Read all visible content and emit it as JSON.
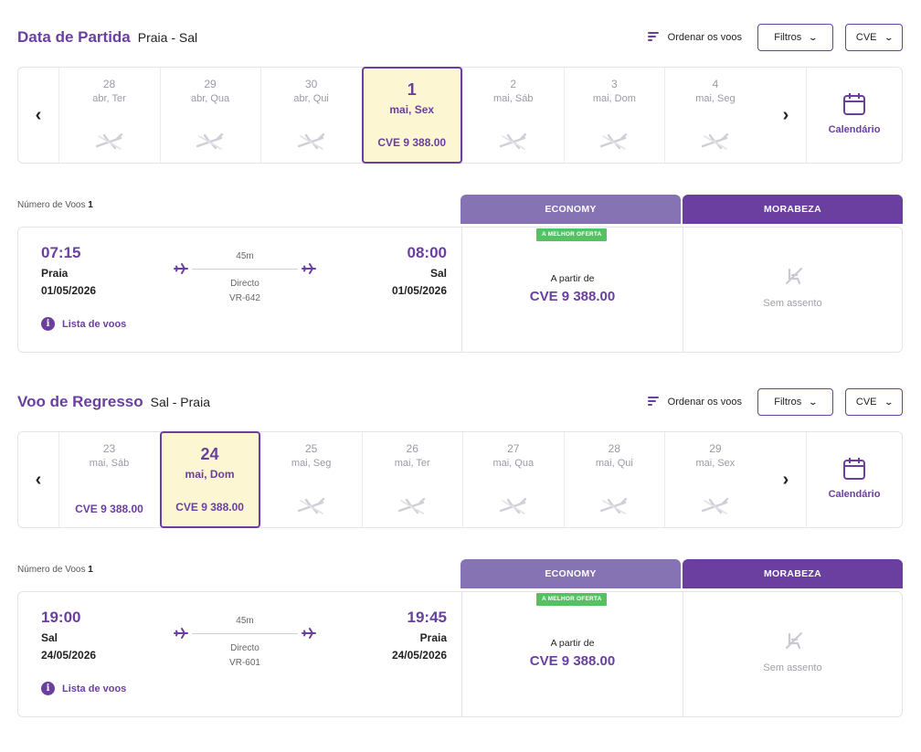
{
  "currency_selected": "CVE",
  "accent_color": "#6a3fa0",
  "selected_day_bg": "#fdf6d3",
  "outbound": {
    "title": "Data de Partida",
    "route": "Praia - Sal",
    "sort_label": "Ordenar os voos",
    "filters_label": "Filtros",
    "currency": "CVE",
    "calendar_label": "Calendário",
    "days": [
      {
        "num": "28",
        "label": "abr, Ter",
        "price": null
      },
      {
        "num": "29",
        "label": "abr, Qua",
        "price": null
      },
      {
        "num": "30",
        "label": "abr, Qui",
        "price": null
      },
      {
        "num": "1",
        "label": "mai, Sex",
        "price": "CVE 9 388.00",
        "selected": true
      },
      {
        "num": "2",
        "label": "mai, Sáb",
        "price": null
      },
      {
        "num": "3",
        "label": "mai, Dom",
        "price": null
      },
      {
        "num": "4",
        "label": "mai, Seg",
        "price": null
      }
    ],
    "flights_count_label": "Número de Voos",
    "flights_count": "1",
    "cabins": [
      "ECONOMY",
      "MORABEZA"
    ],
    "flight": {
      "dep_time": "07:15",
      "dep_city": "Praia",
      "dep_date": "01/05/2026",
      "arr_time": "08:00",
      "arr_city": "Sal",
      "arr_date": "01/05/2026",
      "duration": "45m",
      "stops": "Directo",
      "flight_number": "VR-642",
      "list_label": "Lista de voos",
      "best_offer": "A MELHOR OFERTA",
      "from_label": "A partir de",
      "economy_price": "CVE 9 388.00",
      "morabeza_status": "Sem assento"
    }
  },
  "return": {
    "title": "Voo de Regresso",
    "route": "Sal - Praia",
    "sort_label": "Ordenar os voos",
    "filters_label": "Filtros",
    "currency": "CVE",
    "calendar_label": "Calendário",
    "days": [
      {
        "num": "23",
        "label": "mai, Sáb",
        "price": "CVE 9 388.00"
      },
      {
        "num": "24",
        "label": "mai, Dom",
        "price": "CVE 9 388.00",
        "selected": true
      },
      {
        "num": "25",
        "label": "mai, Seg",
        "price": null
      },
      {
        "num": "26",
        "label": "mai, Ter",
        "price": null
      },
      {
        "num": "27",
        "label": "mai, Qua",
        "price": null
      },
      {
        "num": "28",
        "label": "mai, Qui",
        "price": null
      },
      {
        "num": "29",
        "label": "mai, Sex",
        "price": null
      }
    ],
    "flights_count_label": "Número de Voos",
    "flights_count": "1",
    "cabins": [
      "ECONOMY",
      "MORABEZA"
    ],
    "flight": {
      "dep_time": "19:00",
      "dep_city": "Sal",
      "dep_date": "24/05/2026",
      "arr_time": "19:45",
      "arr_city": "Praia",
      "arr_date": "24/05/2026",
      "duration": "45m",
      "stops": "Directo",
      "flight_number": "VR-601",
      "list_label": "Lista de voos",
      "best_offer": "A MELHOR OFERTA",
      "from_label": "A partir de",
      "economy_price": "CVE 9 388.00",
      "morabeza_status": "Sem assento"
    }
  }
}
